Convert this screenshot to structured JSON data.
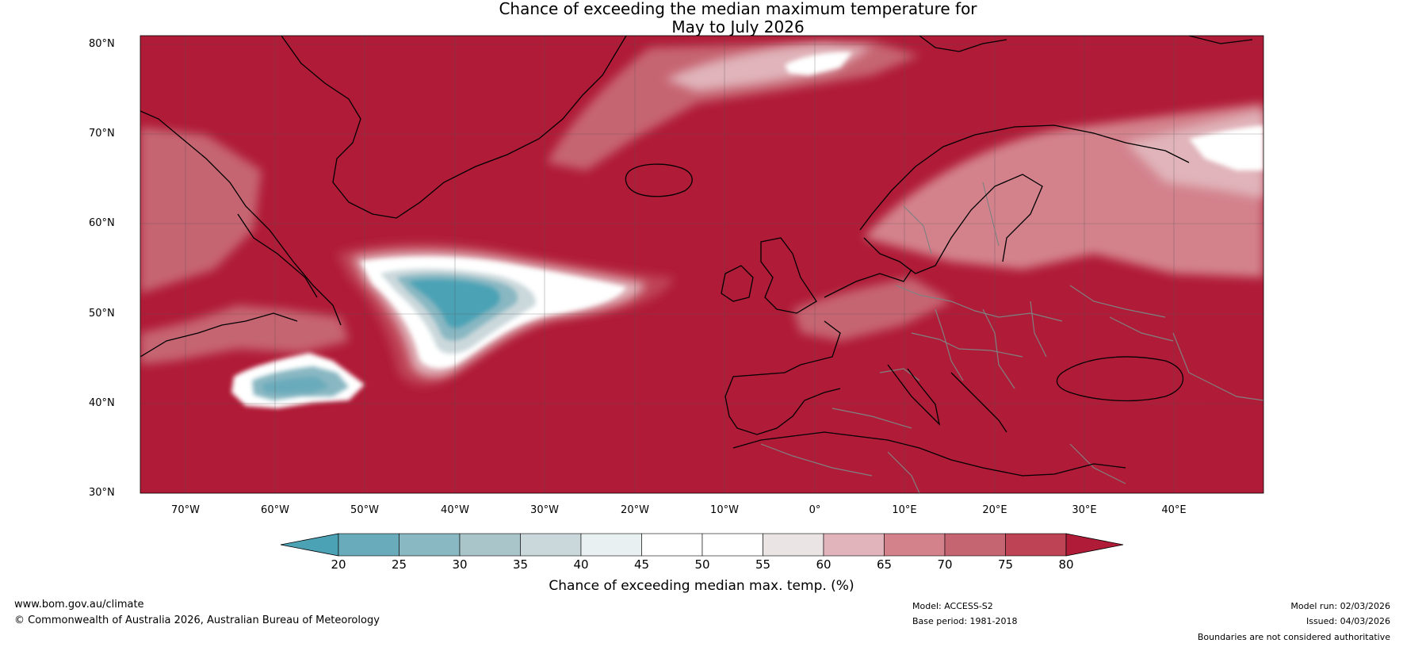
{
  "title": {
    "line1": "Chance of exceeding the median maximum temperature for",
    "line2": "May to July 2026"
  },
  "map": {
    "lat_labels": [
      "80°N",
      "70°N",
      "60°N",
      "50°N",
      "40°N",
      "30°N"
    ],
    "lon_labels": [
      "70°W",
      "60°W",
      "50°W",
      "40°W",
      "30°W",
      "20°W",
      "10°W",
      "0°",
      "10°E",
      "20°E",
      "30°E",
      "40°E"
    ],
    "lat_range": [
      30,
      81
    ],
    "lon_range": [
      -75,
      50
    ],
    "background_color": "#b01b37"
  },
  "colorbar": {
    "ticks": [
      "20",
      "25",
      "30",
      "35",
      "40",
      "45",
      "50",
      "55",
      "60",
      "65",
      "70",
      "75",
      "80"
    ],
    "colors": [
      "#4ca2b5",
      "#6aabbb",
      "#89b7c2",
      "#a9c5ca",
      "#cbd8db",
      "#e9f0f1",
      "#ffffff",
      "#ffffff",
      "#eae4e5",
      "#e0b4ba",
      "#d3828c",
      "#c66572",
      "#be4354",
      "#b01b37"
    ],
    "label": "Chance of exceeding median max. temp. (%)"
  },
  "footer": {
    "website": "www.bom.gov.au/climate",
    "copyright": "© Commonwealth of Australia 2026, Australian Bureau of Meteorology",
    "model": "Model: ACCESS-S2",
    "base_period": "Base period: 1981-2018",
    "model_run": "Model run: 02/03/2026",
    "issued": "Issued: 04/03/2026",
    "disclaimer": "Boundaries are not considered authoritative"
  }
}
